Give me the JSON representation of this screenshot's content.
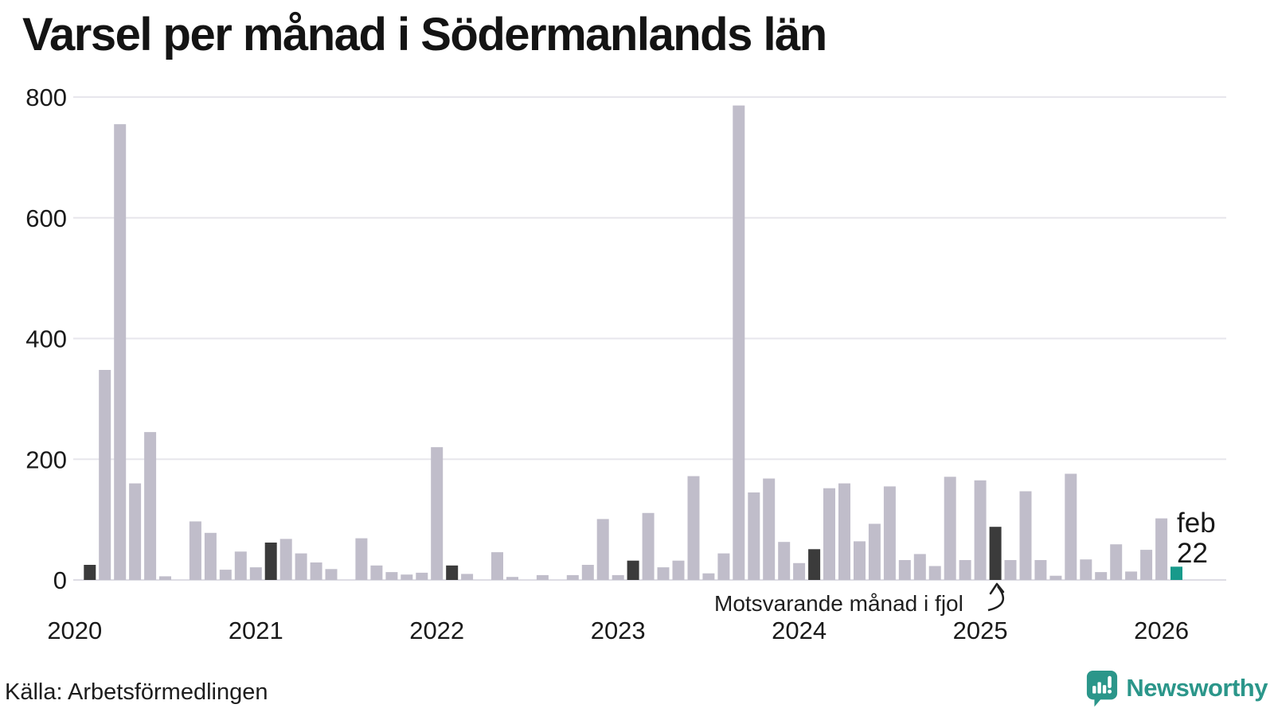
{
  "chart_data": {
    "type": "bar",
    "title": "Varsel per månad i Södermanlands län",
    "xlabel": "",
    "ylabel": "",
    "ylim": [
      0,
      800
    ],
    "yticks": [
      0,
      200,
      400,
      600,
      800
    ],
    "grid": "horizontal",
    "year_labels": [
      "2020",
      "2021",
      "2022",
      "2023",
      "2024",
      "2025",
      "2026"
    ],
    "legend_note": "dark bars mark the corresponding month (February) of each previous year; teal bar is the current month",
    "months": [
      {
        "month": "2020-01",
        "value": 0,
        "kind": "normal"
      },
      {
        "month": "2020-02",
        "value": 25,
        "kind": "fjol"
      },
      {
        "month": "2020-03",
        "value": 348,
        "kind": "normal"
      },
      {
        "month": "2020-04",
        "value": 755,
        "kind": "normal"
      },
      {
        "month": "2020-05",
        "value": 160,
        "kind": "normal"
      },
      {
        "month": "2020-06",
        "value": 245,
        "kind": "normal"
      },
      {
        "month": "2020-07",
        "value": 6,
        "kind": "normal"
      },
      {
        "month": "2020-08",
        "value": 0,
        "kind": "normal"
      },
      {
        "month": "2020-09",
        "value": 97,
        "kind": "normal"
      },
      {
        "month": "2020-10",
        "value": 78,
        "kind": "normal"
      },
      {
        "month": "2020-11",
        "value": 17,
        "kind": "normal"
      },
      {
        "month": "2020-12",
        "value": 47,
        "kind": "normal"
      },
      {
        "month": "2021-01",
        "value": 21,
        "kind": "normal"
      },
      {
        "month": "2021-02",
        "value": 62,
        "kind": "fjol"
      },
      {
        "month": "2021-03",
        "value": 68,
        "kind": "normal"
      },
      {
        "month": "2021-04",
        "value": 44,
        "kind": "normal"
      },
      {
        "month": "2021-05",
        "value": 29,
        "kind": "normal"
      },
      {
        "month": "2021-06",
        "value": 18,
        "kind": "normal"
      },
      {
        "month": "2021-07",
        "value": 0,
        "kind": "normal"
      },
      {
        "month": "2021-08",
        "value": 69,
        "kind": "normal"
      },
      {
        "month": "2021-09",
        "value": 24,
        "kind": "normal"
      },
      {
        "month": "2021-10",
        "value": 13,
        "kind": "normal"
      },
      {
        "month": "2021-11",
        "value": 9,
        "kind": "normal"
      },
      {
        "month": "2021-12",
        "value": 12,
        "kind": "normal"
      },
      {
        "month": "2022-01",
        "value": 220,
        "kind": "normal"
      },
      {
        "month": "2022-02",
        "value": 24,
        "kind": "fjol"
      },
      {
        "month": "2022-03",
        "value": 10,
        "kind": "normal"
      },
      {
        "month": "2022-04",
        "value": 0,
        "kind": "normal"
      },
      {
        "month": "2022-05",
        "value": 46,
        "kind": "normal"
      },
      {
        "month": "2022-06",
        "value": 5,
        "kind": "normal"
      },
      {
        "month": "2022-07",
        "value": 0,
        "kind": "normal"
      },
      {
        "month": "2022-08",
        "value": 8,
        "kind": "normal"
      },
      {
        "month": "2022-09",
        "value": 0,
        "kind": "normal"
      },
      {
        "month": "2022-10",
        "value": 8,
        "kind": "normal"
      },
      {
        "month": "2022-11",
        "value": 25,
        "kind": "normal"
      },
      {
        "month": "2022-12",
        "value": 101,
        "kind": "normal"
      },
      {
        "month": "2023-01",
        "value": 8,
        "kind": "normal"
      },
      {
        "month": "2023-02",
        "value": 32,
        "kind": "fjol"
      },
      {
        "month": "2023-03",
        "value": 111,
        "kind": "normal"
      },
      {
        "month": "2023-04",
        "value": 21,
        "kind": "normal"
      },
      {
        "month": "2023-05",
        "value": 32,
        "kind": "normal"
      },
      {
        "month": "2023-06",
        "value": 172,
        "kind": "normal"
      },
      {
        "month": "2023-07",
        "value": 11,
        "kind": "normal"
      },
      {
        "month": "2023-08",
        "value": 44,
        "kind": "normal"
      },
      {
        "month": "2023-09",
        "value": 786,
        "kind": "normal"
      },
      {
        "month": "2023-10",
        "value": 145,
        "kind": "normal"
      },
      {
        "month": "2023-11",
        "value": 168,
        "kind": "normal"
      },
      {
        "month": "2023-12",
        "value": 63,
        "kind": "normal"
      },
      {
        "month": "2024-01",
        "value": 28,
        "kind": "normal"
      },
      {
        "month": "2024-02",
        "value": 51,
        "kind": "fjol"
      },
      {
        "month": "2024-03",
        "value": 152,
        "kind": "normal"
      },
      {
        "month": "2024-04",
        "value": 160,
        "kind": "normal"
      },
      {
        "month": "2024-05",
        "value": 64,
        "kind": "normal"
      },
      {
        "month": "2024-06",
        "value": 93,
        "kind": "normal"
      },
      {
        "month": "2024-07",
        "value": 155,
        "kind": "normal"
      },
      {
        "month": "2024-08",
        "value": 33,
        "kind": "normal"
      },
      {
        "month": "2024-09",
        "value": 43,
        "kind": "normal"
      },
      {
        "month": "2024-10",
        "value": 23,
        "kind": "normal"
      },
      {
        "month": "2024-11",
        "value": 171,
        "kind": "normal"
      },
      {
        "month": "2024-12",
        "value": 33,
        "kind": "normal"
      },
      {
        "month": "2025-01",
        "value": 165,
        "kind": "normal"
      },
      {
        "month": "2025-02",
        "value": 88,
        "kind": "fjol"
      },
      {
        "month": "2025-03",
        "value": 33,
        "kind": "normal"
      },
      {
        "month": "2025-04",
        "value": 147,
        "kind": "normal"
      },
      {
        "month": "2025-05",
        "value": 33,
        "kind": "normal"
      },
      {
        "month": "2025-06",
        "value": 7,
        "kind": "normal"
      },
      {
        "month": "2025-07",
        "value": 176,
        "kind": "normal"
      },
      {
        "month": "2025-08",
        "value": 34,
        "kind": "normal"
      },
      {
        "month": "2025-09",
        "value": 13,
        "kind": "normal"
      },
      {
        "month": "2025-10",
        "value": 59,
        "kind": "normal"
      },
      {
        "month": "2025-11",
        "value": 14,
        "kind": "normal"
      },
      {
        "month": "2025-12",
        "value": 50,
        "kind": "normal"
      },
      {
        "month": "2026-01",
        "value": 102,
        "kind": "normal"
      },
      {
        "month": "2026-02",
        "value": 22,
        "kind": "current"
      }
    ],
    "annotation": {
      "text": "Motsvarande månad i fjol",
      "points_to": "2025-02"
    },
    "current_label": {
      "line1": "feb",
      "line2": "22"
    },
    "colors": {
      "normal": "#c0bdca",
      "fjol": "#3b3b3b",
      "current": "#189a8b",
      "gridline": "#e7e6ec",
      "baseline": "#dedde4",
      "text": "#1a1a1a",
      "brand_teal": "#2b968a"
    }
  },
  "footer": {
    "source": "Källa: Arbetsförmedlingen",
    "brand": "Newsworthy"
  }
}
